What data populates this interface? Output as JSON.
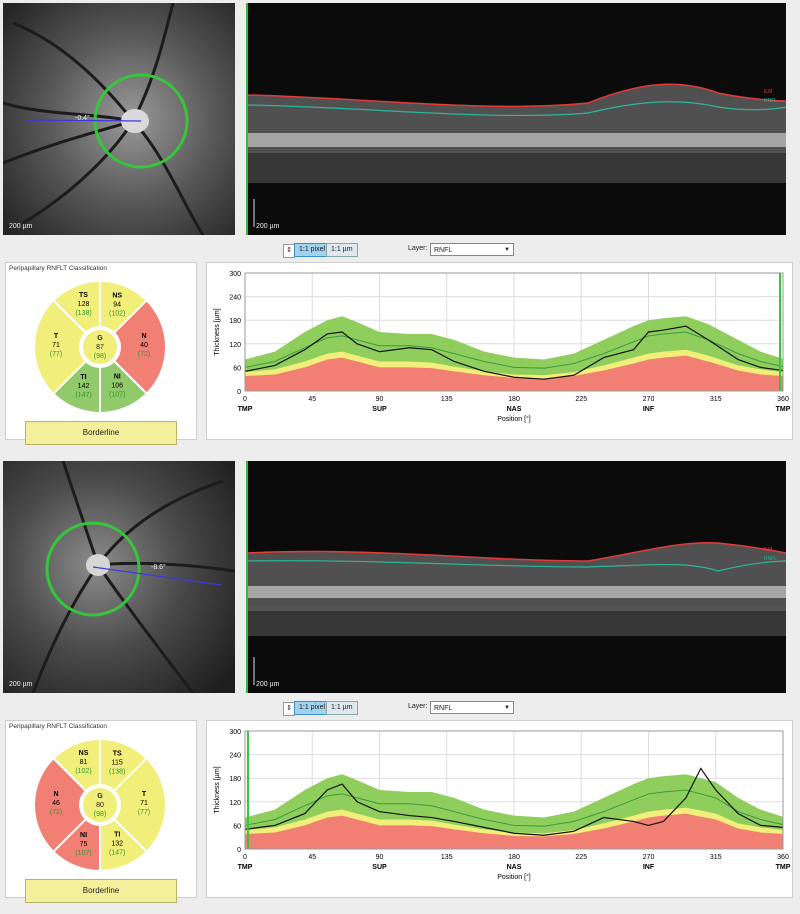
{
  "colors": {
    "green_band": "#8fce5c",
    "yellow_band": "#f2ee7a",
    "red_band": "#f27f73",
    "borderline": "#f4ef9a",
    "circle": "#35c63a",
    "layer_red": "#e23b3b",
    "layer_teal": "#2fb59a"
  },
  "panels": [
    {
      "fundus": {
        "scale_label": "200 µm",
        "angle_label": "-0.4°"
      },
      "bscan": {
        "scale_label": "200 µm",
        "ilm_label": "ILM",
        "rnfl_label": "RNFL"
      },
      "toolbar": {
        "btn1": "1:1 pixel",
        "btn2": "1:1 µm",
        "layer_label": "Layer:",
        "layer_value": "RNFL"
      },
      "classification": {
        "title": "Peripapillary RNFLT Classification",
        "sectors": {
          "TS": {
            "name": "TS",
            "value": "128",
            "normal": "(138)"
          },
          "NS": {
            "name": "NS",
            "value": "94",
            "normal": "(102)"
          },
          "left": {
            "name": "T",
            "value": "71",
            "normal": "(77)"
          },
          "right": {
            "name": "N",
            "value": "40",
            "normal": "(72)"
          },
          "TI": {
            "name": "TI",
            "value": "142",
            "normal": "(147)"
          },
          "NI": {
            "name": "NI",
            "value": "106",
            "normal": "(107)"
          },
          "G": {
            "name": "G",
            "value": "87",
            "normal": "(98)"
          }
        },
        "verdict": "Borderline"
      },
      "chart_data": {
        "type": "line",
        "xlabel": "Position [°]",
        "ylabel": "Thickness [µm]",
        "xlim": [
          0,
          360
        ],
        "ylim": [
          0,
          300
        ],
        "xticks": [
          0,
          45,
          90,
          135,
          180,
          225,
          270,
          315,
          360
        ],
        "yticks": [
          0,
          60,
          120,
          180,
          240,
          300
        ],
        "region_labels": [
          {
            "x": 0,
            "text": "TMP"
          },
          {
            "x": 90,
            "text": "SUP"
          },
          {
            "x": 180,
            "text": "NAS"
          },
          {
            "x": 270,
            "text": "INF"
          },
          {
            "x": 360,
            "text": "TMP"
          }
        ],
        "x": [
          0,
          20,
          40,
          55,
          65,
          75,
          90,
          110,
          125,
          140,
          160,
          180,
          200,
          220,
          240,
          260,
          270,
          280,
          295,
          310,
          330,
          345,
          360
        ],
        "measured": [
          50,
          65,
          105,
          145,
          150,
          120,
          100,
          110,
          105,
          75,
          50,
          35,
          30,
          40,
          85,
          105,
          150,
          155,
          165,
          130,
          80,
          60,
          52
        ],
        "normal_mean": [
          60,
          75,
          110,
          135,
          140,
          130,
          115,
          115,
          110,
          95,
          75,
          60,
          58,
          70,
          95,
          125,
          140,
          145,
          150,
          130,
          95,
          75,
          62
        ],
        "green_upper": [
          80,
          100,
          150,
          180,
          190,
          175,
          150,
          145,
          145,
          130,
          100,
          85,
          80,
          95,
          130,
          165,
          180,
          185,
          190,
          170,
          130,
          100,
          82
        ],
        "yellow_upper": [
          48,
          55,
          75,
          95,
          100,
          90,
          75,
          75,
          72,
          62,
          50,
          42,
          40,
          48,
          65,
          85,
          95,
          100,
          105,
          90,
          65,
          55,
          48
        ],
        "red_upper": [
          38,
          42,
          60,
          80,
          85,
          75,
          60,
          60,
          58,
          50,
          40,
          33,
          32,
          38,
          52,
          70,
          80,
          85,
          90,
          75,
          52,
          42,
          38
        ],
        "marker_x": 358
      }
    },
    {
      "fundus": {
        "scale_label": "200 µm",
        "angle_label": "-8.6°"
      },
      "bscan": {
        "scale_label": "200 µm",
        "ilm_label": "ILM",
        "rnfl_label": "RNFL"
      },
      "toolbar": {
        "btn1": "1:1 pixel",
        "btn2": "1:1 µm",
        "layer_label": "Layer:",
        "layer_value": "RNFL"
      },
      "classification": {
        "title": "Peripapillary RNFLT Classification",
        "sectors": {
          "TS": {
            "name": "NS",
            "value": "81",
            "normal": "(102)"
          },
          "NS": {
            "name": "TS",
            "value": "115",
            "normal": "(138)"
          },
          "left": {
            "name": "N",
            "value": "46",
            "normal": "(72)"
          },
          "right": {
            "name": "T",
            "value": "71",
            "normal": "(77)"
          },
          "TI": {
            "name": "NI",
            "value": "75",
            "normal": "(107)"
          },
          "NI": {
            "name": "TI",
            "value": "132",
            "normal": "(147)"
          },
          "G": {
            "name": "G",
            "value": "80",
            "normal": "(98)"
          }
        },
        "verdict": "Borderline"
      },
      "chart_data": {
        "type": "line",
        "xlabel": "Position [°]",
        "ylabel": "Thickness [µm]",
        "xlim": [
          0,
          360
        ],
        "ylim": [
          0,
          300
        ],
        "xticks": [
          0,
          45,
          90,
          135,
          180,
          225,
          270,
          315,
          360
        ],
        "yticks": [
          0,
          60,
          120,
          180,
          240,
          300
        ],
        "region_labels": [
          {
            "x": 0,
            "text": "TMP"
          },
          {
            "x": 90,
            "text": "SUP"
          },
          {
            "x": 180,
            "text": "NAS"
          },
          {
            "x": 270,
            "text": "INF"
          },
          {
            "x": 360,
            "text": "TMP"
          }
        ],
        "x": [
          0,
          20,
          40,
          55,
          65,
          75,
          90,
          110,
          125,
          140,
          160,
          180,
          200,
          220,
          240,
          260,
          270,
          280,
          295,
          305,
          315,
          330,
          345,
          360
        ],
        "measured": [
          50,
          60,
          90,
          150,
          165,
          120,
          95,
          85,
          80,
          70,
          55,
          40,
          35,
          45,
          80,
          70,
          60,
          70,
          130,
          205,
          150,
          90,
          60,
          55
        ],
        "normal_mean": [
          60,
          75,
          110,
          135,
          140,
          130,
          115,
          115,
          110,
          95,
          75,
          60,
          58,
          70,
          95,
          125,
          140,
          145,
          150,
          140,
          130,
          95,
          75,
          62
        ],
        "green_upper": [
          80,
          100,
          150,
          180,
          190,
          175,
          150,
          145,
          145,
          130,
          100,
          85,
          80,
          95,
          130,
          165,
          180,
          185,
          190,
          180,
          170,
          130,
          100,
          82
        ],
        "yellow_upper": [
          48,
          55,
          75,
          95,
          100,
          90,
          75,
          75,
          72,
          62,
          50,
          42,
          40,
          48,
          65,
          85,
          95,
          100,
          105,
          98,
          90,
          65,
          55,
          48
        ],
        "red_upper": [
          38,
          42,
          60,
          80,
          85,
          75,
          60,
          60,
          58,
          50,
          40,
          33,
          32,
          38,
          52,
          70,
          80,
          85,
          90,
          82,
          75,
          52,
          42,
          38
        ],
        "marker_x": 2
      }
    }
  ]
}
